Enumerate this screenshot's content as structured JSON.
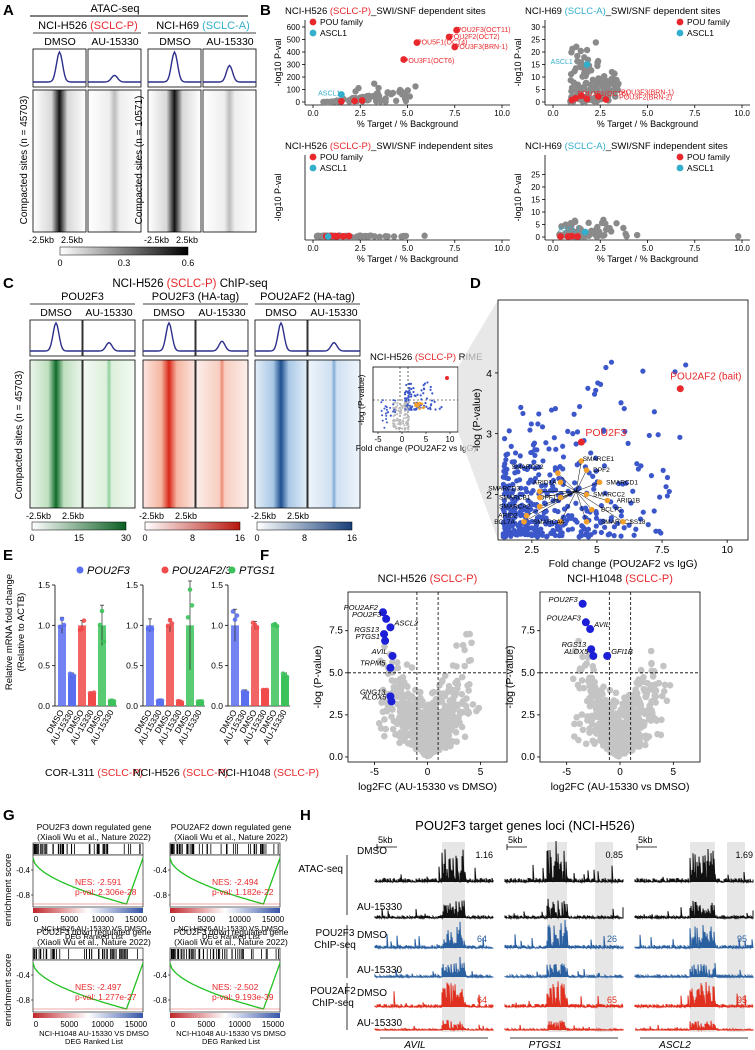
{
  "panel_letters": [
    "A",
    "B",
    "C",
    "D",
    "E",
    "F",
    "G",
    "H"
  ],
  "colors": {
    "sclc_p": "#e8282c",
    "sclc_a": "#33aecb",
    "pou": "#e8282c",
    "ascl1": "#33aecb",
    "gray": "#8a8a8a",
    "green": "#1a8a3c",
    "red": "#e43a2a",
    "blue": "#2e6fb0",
    "vol_blue": "#3b57c9",
    "orange": "#f1a02e",
    "bar_blue": "#5a6ef0",
    "bar_red": "#f04a4a",
    "bar_green": "#3cc25a",
    "track_black": "#111111",
    "track_blue": "#2a5fa0",
    "track_red": "#e03020"
  },
  "A": {
    "title": "ATAC-seq",
    "cells": [
      {
        "name": "NCI-H526",
        "subtype": "(SCLC-P)",
        "color": "sclc_p",
        "n_label": "Compacted sites (n = 45703)"
      },
      {
        "name": "NCI-H69",
        "subtype": "(SCLC-A)",
        "color": "sclc_a",
        "n_label": "Compacted sites (n = 10571)"
      }
    ],
    "conditions": [
      "DMSO",
      "AU-15330"
    ],
    "xaxis": [
      "-2.5kb",
      "2.5kb"
    ],
    "scale": [
      "0",
      "0.3",
      "0.6"
    ],
    "scale_text_colors": [
      "#000000",
      "#000000",
      "#000000"
    ],
    "profile_peaks": [
      1.0,
      0.22,
      1.0,
      0.55
    ]
  },
  "B": {
    "subplots": [
      {
        "title_cell": "NCI-H526",
        "title_sub": "(SCLC-P)",
        "title_rest": "_SWI/SNF dependent sites",
        "sub_color": "sclc_p",
        "ymax": 600,
        "yticks": [
          0,
          100,
          200,
          300,
          400,
          500,
          600
        ],
        "xmax": 10,
        "xticks": [
          0.0,
          2.5,
          5.0,
          7.5,
          10.0
        ],
        "legend": [
          "POU family",
          "ASCL1"
        ],
        "labels": [
          {
            "text": "POU2F3(OCT11)",
            "x": 7.6,
            "y": 575,
            "c": "sclc_p"
          },
          {
            "text": "POU2F2(OCT2)",
            "x": 7.2,
            "y": 520,
            "c": "sclc_p"
          },
          {
            "text": "POU5F1(OCT4)",
            "x": 5.5,
            "y": 475,
            "c": "sclc_p"
          },
          {
            "text": "POU3F3(BRN-1)",
            "x": 7.5,
            "y": 440,
            "c": "sclc_p"
          },
          {
            "text": "POU3F1(OCT6)",
            "x": 4.8,
            "y": 330,
            "c": "sclc_p"
          },
          {
            "text": "ASCL1",
            "x": 1.6,
            "y": 70,
            "c": "sclc_a"
          }
        ]
      },
      {
        "title_cell": "NCI-H69",
        "title_sub": "(SCLC-A)",
        "title_rest": "_SWI/SNF dependent sites",
        "sub_color": "sclc_a",
        "ymax": 30,
        "yticks": [
          0,
          5,
          10,
          15,
          20,
          25,
          30
        ],
        "xmax": 10,
        "xticks": [
          0.0,
          2.5,
          5.0,
          7.5,
          10.0
        ],
        "legend": [
          "POU family",
          "ASCL1"
        ],
        "labels": [
          {
            "text": "ASCL1",
            "x": 1.2,
            "y": 16,
            "c": "sclc_a"
          },
          {
            "text": "POU3F1(OCT6)",
            "x": 1.3,
            "y": 3.3,
            "c": "sclc_p"
          },
          {
            "text": "POU3F3(BRN-1)",
            "x": 3.6,
            "y": 3.8,
            "c": "sclc_p"
          },
          {
            "text": "POU3F2(BRN-2)",
            "x": 3.5,
            "y": 1.8,
            "c": "sclc_p"
          }
        ]
      },
      {
        "title_cell": "NCI-H526",
        "title_sub": "(SCLC-P)",
        "title_rest": "_SWI/SNF independent sites",
        "sub_color": "sclc_p",
        "ymax": 30,
        "yticks": [],
        "xmax": 10,
        "xticks": [
          0.0,
          2.5,
          5.0,
          7.5,
          10.0
        ],
        "legend": [
          "POU family",
          "ASCL1"
        ],
        "labels": []
      },
      {
        "title_cell": "NCI-H69",
        "title_sub": "(SCLC-A)",
        "title_rest": "_SWI/SNF independent sites",
        "sub_color": "sclc_a",
        "ymax": 30,
        "yticks": [
          0,
          5,
          10,
          15,
          20,
          25
        ],
        "xmax": 10,
        "xticks": [
          0.0,
          2.5,
          5.0,
          7.5,
          10.0
        ],
        "legend": [
          "POU family",
          "ASCL1"
        ],
        "labels": [
          {
            "text": "ASCL1",
            "x": 1.6,
            "y": 3.0,
            "c": "sclc_a"
          }
        ]
      }
    ],
    "xlabel": "% Target / % Background",
    "ylabel": "-log10 P-val"
  },
  "C": {
    "title_cell": "NCI-H526",
    "title_sub": "(SCLC-P)",
    "title_rest": "ChIP-seq",
    "groups": [
      "POU2F3",
      "POU2F3 (HA-tag)",
      "POU2AF2 (HA-tag)"
    ],
    "conditions": [
      "DMSO",
      "AU-15330"
    ],
    "n_label": "Compacted sites (n = 45703)",
    "xaxis": [
      "-2.5kb",
      "2.5kb"
    ],
    "scales": [
      [
        "0",
        "15",
        "30"
      ],
      [
        "0",
        "8",
        "16"
      ],
      [
        "0",
        "8",
        "16"
      ]
    ],
    "profile_peaks": [
      1.0,
      0.3,
      1.0,
      0.35,
      1.0,
      0.3
    ]
  },
  "D": {
    "inset_title_cell": "NCI-H526",
    "inset_title_sub": "(SCLC-P)",
    "inset_title_rest": "RIME",
    "inset_xlabel": "Fold change (POU2AF2 vs IgG)",
    "inset_ylabel": "-log (P-value)",
    "inset_xticks": [
      "-5",
      "0",
      "5",
      "10"
    ],
    "xlabel": "Fold change (POU2AF2 vs IgG)",
    "ylabel": "-log (P-value)",
    "xticks": [
      2.5,
      5,
      7.5,
      10
    ],
    "yticks": [
      2,
      3,
      4
    ],
    "xlim": [
      1.2,
      10.8
    ],
    "ylim": [
      1.25,
      5.2
    ],
    "highlights": [
      {
        "text": "POU2AF2 (bait)",
        "x": 8.2,
        "y": 3.74
      },
      {
        "text": "POU2F3",
        "x": 4.4,
        "y": 2.86
      }
    ],
    "swisnf": [
      {
        "text": "SMARCE1",
        "x": 4.4,
        "y": 2.55,
        "lx": 4.3,
        "ly": 2.58
      },
      {
        "text": "SMARCD2",
        "x": 3.5,
        "y": 2.35,
        "lx": 3.1,
        "ly": 2.45
      },
      {
        "text": "SMARCD1",
        "x": 5.1,
        "y": 2.2,
        "lx": 5.2,
        "ly": 2.2
      },
      {
        "text": "ARID1A",
        "x": 3.6,
        "y": 2.2,
        "lx": 3.6,
        "ly": 2.2
      },
      {
        "text": "SMARCD3",
        "x": 2.8,
        "y": 2.05,
        "lx": 2.2,
        "ly": 2.1
      },
      {
        "text": "SMARCC2",
        "x": 4.6,
        "y": 2.0,
        "lx": 4.7,
        "ly": 2.0
      },
      {
        "text": "DPF2",
        "x": 4.6,
        "y": 2.4,
        "lx": 4.7,
        "ly": 2.4
      },
      {
        "text": "DPF1",
        "x": 3.6,
        "y": 1.95,
        "lx": 3.6,
        "ly": 1.95
      },
      {
        "text": "SMARCA2",
        "x": 2.8,
        "y": 1.8,
        "lx": 2.6,
        "ly": 1.8
      },
      {
        "text": "SMARCB1",
        "x": 2.8,
        "y": 1.95,
        "lx": 2.6,
        "ly": 1.95
      },
      {
        "text": "ARID1B",
        "x": 5.4,
        "y": 1.9,
        "lx": 5.6,
        "ly": 1.9
      },
      {
        "text": "BCL7C",
        "x": 4.8,
        "y": 1.75,
        "lx": 5.0,
        "ly": 1.75
      },
      {
        "text": "ARID2",
        "x": 2.3,
        "y": 1.65,
        "lx": 2.1,
        "ly": 1.65
      },
      {
        "text": "SMARCA4",
        "x": 3.6,
        "y": 1.55,
        "lx": 3.9,
        "ly": 1.55
      },
      {
        "text": "SMARCC1",
        "x": 4.6,
        "y": 1.55,
        "lx": 5.0,
        "ly": 1.55
      },
      {
        "text": "SS18",
        "x": 6.0,
        "y": 1.55,
        "lx": 6.1,
        "ly": 1.55
      },
      {
        "text": "BCL7A",
        "x": 2.2,
        "y": 1.55,
        "lx": 2.0,
        "ly": 1.55
      }
    ]
  },
  "E": {
    "legend": [
      {
        "text": "POU2F3",
        "c": "bar_blue"
      },
      {
        "text": "POU2AF2/3",
        "c": "bar_red"
      },
      {
        "text": "PTGS1",
        "c": "bar_green"
      }
    ],
    "ylabel": "Relative mRNA fold change",
    "ylabel2": "(Relative to ACTB)",
    "yticks": [
      "0.0",
      "0.5",
      "1.0",
      "1.5"
    ],
    "xlabels": [
      "DMSO",
      "AU-15330"
    ],
    "panels": [
      {
        "cell": "COR-L311",
        "sub": "(SCLC-P)",
        "ymax": 1.5,
        "values": [
          1.0,
          0.38,
          1.0,
          0.16,
          1.0,
          0.06
        ],
        "err": [
          0.1,
          0.03,
          0.06,
          0.01,
          0.25,
          0.01
        ]
      },
      {
        "cell": "NCI-H526",
        "sub": "(SCLC-P)",
        "ymax": 1.5,
        "values": [
          1.0,
          0.06,
          1.0,
          0.05,
          1.0,
          0.05
        ],
        "err": [
          0.08,
          0.01,
          0.08,
          0.01,
          0.55,
          0.01
        ]
      },
      {
        "cell": "NCI-H1048",
        "sub": "(SCLC-P)",
        "ymax": 1.5,
        "values": [
          1.0,
          0.18,
          1.0,
          0.2,
          1.0,
          0.38
        ],
        "err": [
          0.2,
          0.02,
          0.05,
          0.01,
          0.02,
          0.03
        ]
      }
    ]
  },
  "F": {
    "xlabel": "log2FC (AU-15330 vs DMSO)",
    "ylabel": "-log (P-value)",
    "panels": [
      {
        "cell": "NCI-H526",
        "sub": "(SCLC-P)",
        "xticks": [
          -5,
          0,
          5
        ],
        "yticks": [
          0.0,
          2.5,
          5.0,
          7.5
        ],
        "xlim": [
          -7.5,
          7.5
        ],
        "ylim": [
          -0.3,
          9.8
        ],
        "genes": [
          {
            "t": "POU2AF2",
            "x": -4.2,
            "y": 8.6
          },
          {
            "t": "POU2F3",
            "x": -3.9,
            "y": 8.2
          },
          {
            "t": "ASCL2",
            "x": -3.5,
            "y": 7.7
          },
          {
            "t": "RGS13",
            "x": -4.1,
            "y": 7.3
          },
          {
            "t": "PTGS1",
            "x": -4.0,
            "y": 6.9
          },
          {
            "t": "AVIL",
            "x": -3.3,
            "y": 6.0
          },
          {
            "t": "TRPM5",
            "x": -3.5,
            "y": 5.3
          },
          {
            "t": "GNG13",
            "x": -3.5,
            "y": 3.6
          },
          {
            "t": "ALOX5",
            "x": -3.4,
            "y": 3.3
          }
        ]
      },
      {
        "cell": "NCI-H1048",
        "sub": "(SCLC-P)",
        "xticks": [
          -5,
          0,
          5
        ],
        "yticks": [
          0.0,
          2.5,
          5.0,
          7.5
        ],
        "xlim": [
          -7.5,
          7.5
        ],
        "ylim": [
          -0.3,
          9.8
        ],
        "genes": [
          {
            "t": "POU2F3",
            "x": -3.5,
            "y": 9.1
          },
          {
            "t": "POU2AF3",
            "x": -3.2,
            "y": 8.0
          },
          {
            "t": "AVIL",
            "x": -2.8,
            "y": 7.6
          },
          {
            "t": "RGS13",
            "x": -2.7,
            "y": 6.4
          },
          {
            "t": "ALOX5",
            "x": -2.5,
            "y": 6.0
          },
          {
            "t": "GFI1B",
            "x": -1.2,
            "y": 6.0
          }
        ]
      }
    ]
  },
  "G": {
    "ylabel": "enrichment score",
    "xticks": [
      "0",
      "5000",
      "10000",
      "15000"
    ],
    "plots": [
      {
        "t1": "POU2F3 down regulated gene",
        "t2": "(Xiaoli Wu et al., Nature 2022)",
        "nes": "NES: -2.591",
        "pval": "p-val: 2.306e-28",
        "x1": "NCI-H526 AU-15330 VS DMSO"
      },
      {
        "t1": "POU2AF2 down regulated gene",
        "t2": "(Xiaoli Wu et al., Nature 2022)",
        "nes": "NES: -2.494",
        "pval": "p-val: 1.182e-22",
        "x1": "NCI-H526 AU-15330 VS DMSO"
      },
      {
        "t1": "POU2F3 down regulated gene",
        "t2": "(Xiaoli Wu et al., Nature 2022)",
        "nes": "NES: -2.497",
        "pval": "p-val: 1.277e-27",
        "x1": "NCI-H1048 AU-15330 VS DMSO"
      },
      {
        "t1": "POU2F3 down regulated gene",
        "t2": "(Xiaoli Wu et al., Nature 2022)",
        "nes": "NES: -2.502",
        "pval": "p-val: 9.193e-39",
        "x1": "NCI-H1048 AU-15330 VS DMSO"
      }
    ],
    "x2": "DEG Ranked List",
    "yticks": [
      "-0.4",
      "-0.8"
    ]
  },
  "H": {
    "title": "POU2F3 target genes loci (NCI-H526)",
    "scalebar": "5kb",
    "loci": [
      {
        "gene": "AVIL",
        "scale_atac": "1.16",
        "scale_pou": "64",
        "scale_af": "64"
      },
      {
        "gene": "PTGS1",
        "scale_atac": "0.85",
        "scale_pou": "26",
        "scale_af": "65"
      },
      {
        "gene": "ASCL2",
        "scale_atac": "1.69",
        "scale_pou": "95",
        "scale_af": "95"
      }
    ],
    "groups": [
      {
        "label": "ATAC-seq",
        "color": "track_black"
      },
      {
        "label": "POU2F3 ChIP-seq",
        "color": "track_blue"
      },
      {
        "label": "POU2AF2 ChIP-seq",
        "color": "track_red"
      }
    ],
    "conditions": [
      "DMSO",
      "AU-15330"
    ]
  }
}
